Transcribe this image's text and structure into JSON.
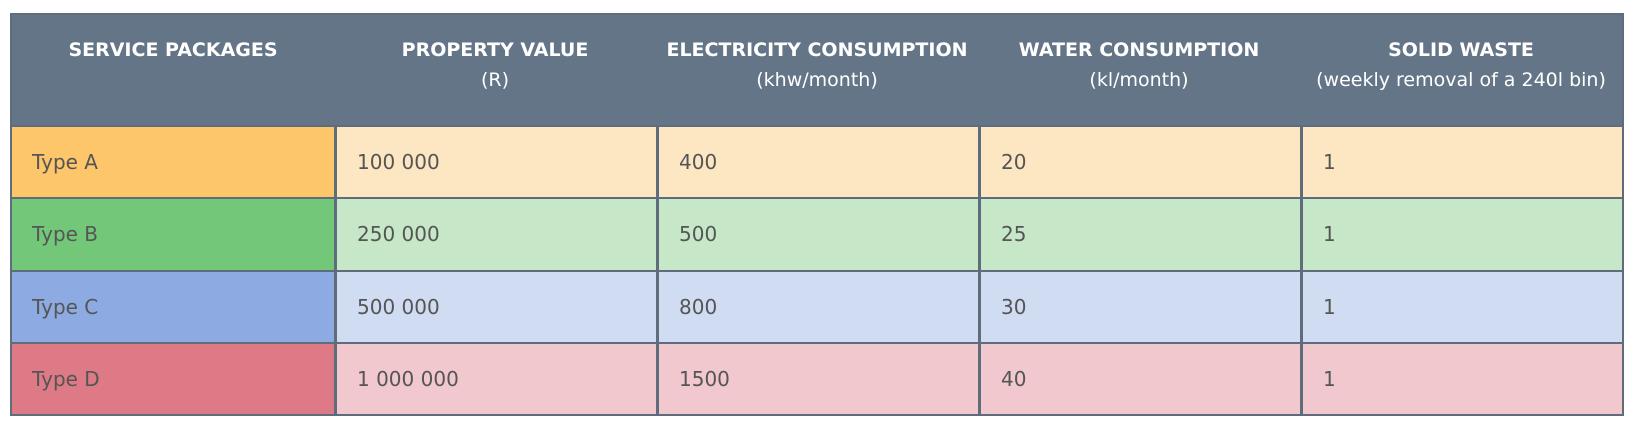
{
  "headers": [
    {
      "main": "SERVICE PACKAGES",
      "sub": ""
    },
    {
      "main": "PROPERTY VALUE",
      "sub": "(R)"
    },
    {
      "main": "ELECTRICITY CONSUMPTION",
      "sub": "(khw/month)"
    },
    {
      "main": "WATER CONSUMPTION",
      "sub": "(kl/month)"
    },
    {
      "main": "SOLID WASTE",
      "sub": "(weekly removal of a 240l bin)"
    }
  ],
  "rows": [
    {
      "package": "Type A",
      "property_value": "100 000",
      "electricity": "400",
      "water": "20",
      "solid_waste": "1",
      "color": "#fdc66a"
    },
    {
      "package": "Type B",
      "property_value": "250 000",
      "electricity": "500",
      "water": "25",
      "solid_waste": "1",
      "color": "#72c878"
    },
    {
      "package": "Type C",
      "property_value": "500 000",
      "electricity": "800",
      "water": "30",
      "solid_waste": "1",
      "color": "#8dabe2"
    },
    {
      "package": "Type D",
      "property_value": "1 000 000",
      "electricity": "1500",
      "water": "40",
      "solid_waste": "1",
      "color": "#dd7a85"
    }
  ],
  "colors": {
    "header_bg": "#647587",
    "header_text": "#ffffff",
    "border": "#5f6c7c"
  }
}
